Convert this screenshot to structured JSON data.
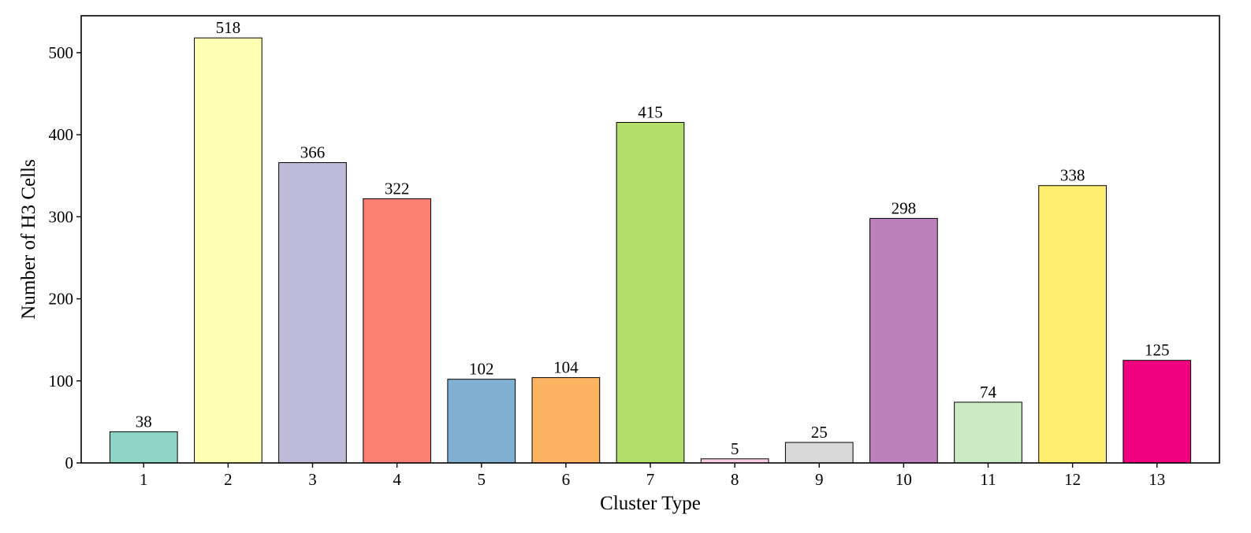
{
  "chart_data": {
    "type": "bar",
    "title": "",
    "xlabel": "Cluster Type",
    "ylabel": "Number of H3 Cells",
    "categories": [
      "1",
      "2",
      "3",
      "4",
      "5",
      "6",
      "7",
      "8",
      "9",
      "10",
      "11",
      "12",
      "13"
    ],
    "values": [
      38,
      518,
      366,
      322,
      102,
      104,
      415,
      5,
      25,
      298,
      74,
      338,
      125
    ],
    "colors": [
      "#8dd3c7",
      "#ffffb3",
      "#bebada",
      "#fb8072",
      "#80b1d3",
      "#fdb462",
      "#b3de69",
      "#fccde5",
      "#d9d9d9",
      "#bc80bd",
      "#ccebc5",
      "#ffed6f",
      "#f0027f"
    ],
    "ylim": [
      0,
      545
    ],
    "yticks": [
      0,
      100,
      200,
      300,
      400,
      500
    ],
    "grid": false,
    "legend": "none",
    "data_labels": true
  }
}
